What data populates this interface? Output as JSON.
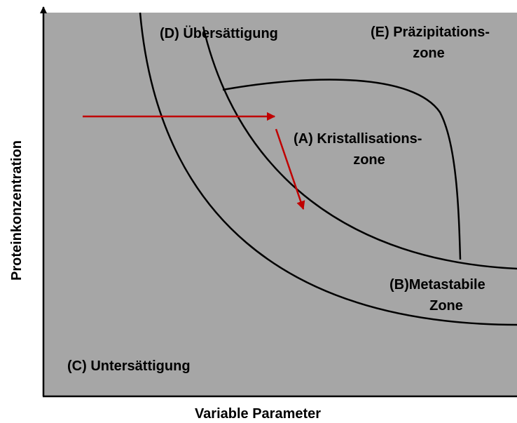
{
  "axes": {
    "x_label": "Variable Parameter",
    "y_label": "Proteinkonzentration"
  },
  "regions": [
    {
      "lines": [
        "(D) Übersättigung"
      ]
    },
    {
      "lines": [
        "(E) Präzipitations-",
        "zone"
      ]
    },
    {
      "lines": [
        "(A) Kristallisations-",
        "zone"
      ]
    },
    {
      "lines": [
        "(B)Metastabile",
        "Zone"
      ]
    },
    {
      "lines": [
        "(C) Untersättigung"
      ]
    }
  ]
}
